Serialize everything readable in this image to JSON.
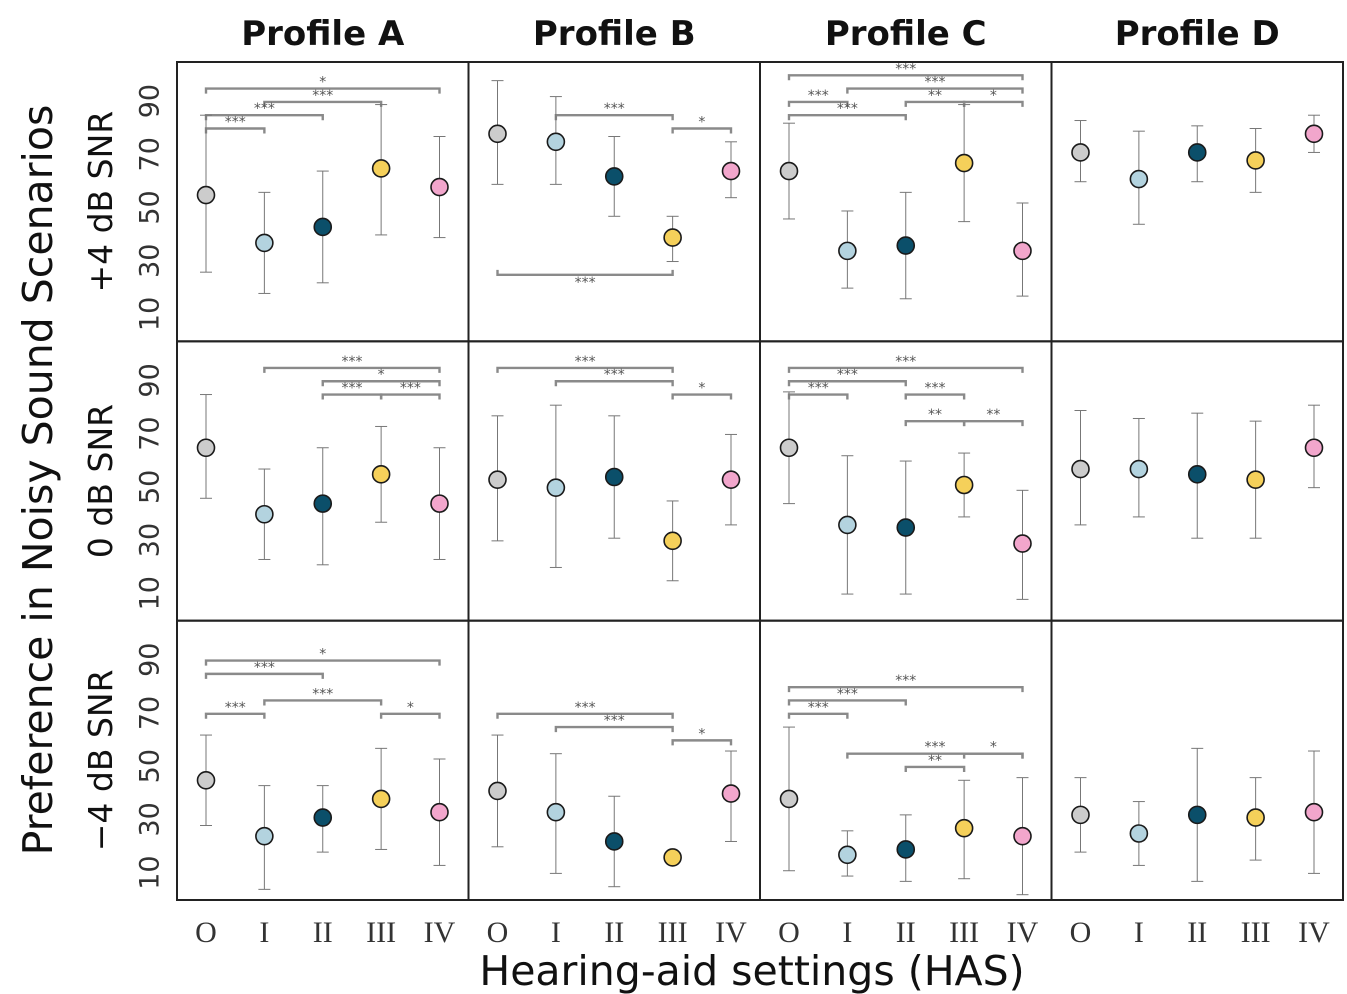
{
  "chart_data": {
    "type": "scatter",
    "ylabel": "Preference in Noisy Sound Scenarios",
    "xlabel": "Hearing-aid settings (HAS)",
    "profiles": [
      "Profile A",
      "Profile B",
      "Profile C",
      "Profile D"
    ],
    "conditions": [
      "+4 dB SNR",
      "0 dB SNR",
      "−4 dB SNR"
    ],
    "categories": [
      "O",
      "I",
      "II",
      "III",
      "IV"
    ],
    "yticks": [
      10,
      30,
      50,
      70,
      90
    ],
    "ylim": [
      0,
      105
    ],
    "colors": [
      "#cccccc",
      "#b3d3df",
      "#0b4f6a",
      "#f5d05a",
      "#f2a6cc"
    ],
    "panels": [
      [
        {
          "mean": [
            55,
            37,
            43,
            65,
            58
          ],
          "lo": [
            26,
            18,
            22,
            40,
            39
          ],
          "hi": [
            85,
            56,
            64,
            89,
            77
          ],
          "sig": [
            {
              "a": 0,
              "b": 4,
              "y": 95,
              "label": "*"
            },
            {
              "a": 1,
              "b": 3,
              "y": 90,
              "label": "***"
            },
            {
              "a": 0,
              "b": 2,
              "y": 85,
              "label": "***"
            },
            {
              "a": 0,
              "b": 1,
              "y": 80,
              "label": "***"
            }
          ]
        },
        {
          "mean": [
            65,
            40,
            44,
            55,
            44
          ],
          "lo": [
            46,
            23,
            21,
            37,
            23
          ],
          "hi": [
            85,
            57,
            65,
            73,
            65
          ],
          "sig": [
            {
              "a": 1,
              "b": 4,
              "y": 95,
              "label": "***"
            },
            {
              "a": 2,
              "b": 4,
              "y": 90,
              "label": "*"
            },
            {
              "a": 2,
              "b": 3,
              "y": 85,
              "label": "***"
            },
            {
              "a": 3,
              "b": 4,
              "y": 85,
              "label": "***"
            }
          ]
        },
        {
          "mean": [
            45,
            24,
            31,
            38,
            33
          ],
          "lo": [
            28,
            4,
            18,
            19,
            13
          ],
          "hi": [
            62,
            43,
            43,
            57,
            53
          ],
          "sig": [
            {
              "a": 0,
              "b": 4,
              "y": 90,
              "label": "*"
            },
            {
              "a": 0,
              "b": 2,
              "y": 85,
              "label": "***"
            },
            {
              "a": 1,
              "b": 3,
              "y": 75,
              "label": "***"
            },
            {
              "a": 0,
              "b": 1,
              "y": 70,
              "label": "***"
            },
            {
              "a": 3,
              "b": 4,
              "y": 70,
              "label": "*"
            }
          ]
        }
      ],
      [
        {
          "mean": [
            78,
            75,
            62,
            39,
            64
          ],
          "lo": [
            59,
            59,
            47,
            30,
            54
          ],
          "hi": [
            98,
            92,
            77,
            47,
            75
          ],
          "sig": [
            {
              "a": 1,
              "b": 3,
              "y": 85,
              "label": "***"
            },
            {
              "a": 3,
              "b": 4,
              "y": 80,
              "label": "*"
            },
            {
              "a": 0,
              "b": 3,
              "y": 25,
              "label": "***",
              "below": true
            }
          ]
        },
        {
          "mean": [
            53,
            50,
            54,
            30,
            53
          ],
          "lo": [
            30,
            20,
            31,
            15,
            36
          ],
          "hi": [
            77,
            81,
            77,
            45,
            70
          ],
          "sig": [
            {
              "a": 0,
              "b": 3,
              "y": 95,
              "label": "***"
            },
            {
              "a": 1,
              "b": 3,
              "y": 90,
              "label": "***"
            },
            {
              "a": 3,
              "b": 4,
              "y": 85,
              "label": "*"
            }
          ]
        },
        {
          "mean": [
            41,
            33,
            22,
            16,
            40
          ],
          "lo": [
            20,
            10,
            5,
            16,
            22
          ],
          "hi": [
            62,
            55,
            39,
            16,
            56
          ],
          "sig": [
            {
              "a": 0,
              "b": 3,
              "y": 70,
              "label": "***"
            },
            {
              "a": 1,
              "b": 3,
              "y": 65,
              "label": "***"
            },
            {
              "a": 3,
              "b": 4,
              "y": 60,
              "label": "*"
            }
          ]
        }
      ],
      [
        {
          "mean": [
            64,
            34,
            36,
            67,
            34
          ],
          "lo": [
            46,
            20,
            16,
            45,
            17
          ],
          "hi": [
            82,
            49,
            56,
            89,
            52
          ],
          "sig": [
            {
              "a": 0,
              "b": 4,
              "y": 100,
              "label": "***"
            },
            {
              "a": 1,
              "b": 4,
              "y": 95,
              "label": "***"
            },
            {
              "a": 0,
              "b": 1,
              "y": 90,
              "label": "***"
            },
            {
              "a": 2,
              "b": 3,
              "y": 90,
              "label": "**"
            },
            {
              "a": 3,
              "b": 4,
              "y": 90,
              "label": "*"
            },
            {
              "a": 0,
              "b": 2,
              "y": 85,
              "label": "***"
            }
          ]
        },
        {
          "mean": [
            65,
            36,
            35,
            51,
            29
          ],
          "lo": [
            44,
            10,
            10,
            39,
            8
          ],
          "hi": [
            86,
            62,
            60,
            63,
            49
          ],
          "sig": [
            {
              "a": 0,
              "b": 4,
              "y": 95,
              "label": "***"
            },
            {
              "a": 0,
              "b": 2,
              "y": 90,
              "label": "***"
            },
            {
              "a": 0,
              "b": 1,
              "y": 85,
              "label": "***"
            },
            {
              "a": 2,
              "b": 3,
              "y": 85,
              "label": "***"
            },
            {
              "a": 2,
              "b": 3,
              "y": 75,
              "label": "**"
            },
            {
              "a": 3,
              "b": 4,
              "y": 75,
              "label": "**"
            }
          ]
        },
        {
          "mean": [
            38,
            17,
            19,
            27,
            24
          ],
          "lo": [
            11,
            9,
            7,
            8,
            2
          ],
          "hi": [
            65,
            26,
            32,
            45,
            46
          ],
          "sig": [
            {
              "a": 0,
              "b": 4,
              "y": 80,
              "label": "***"
            },
            {
              "a": 0,
              "b": 2,
              "y": 75,
              "label": "***"
            },
            {
              "a": 0,
              "b": 1,
              "y": 70,
              "label": "***"
            },
            {
              "a": 1,
              "b": 4,
              "y": 55,
              "label": "***"
            },
            {
              "a": 2,
              "b": 3,
              "y": 50,
              "label": "**"
            },
            {
              "a": 3,
              "b": 4,
              "y": 55,
              "label": "*"
            }
          ]
        }
      ],
      [
        {
          "mean": [
            71,
            61,
            71,
            68,
            78
          ],
          "lo": [
            60,
            44,
            60,
            56,
            71
          ],
          "hi": [
            83,
            79,
            81,
            80,
            85
          ],
          "sig": []
        },
        {
          "mean": [
            57,
            57,
            55,
            53,
            65
          ],
          "lo": [
            36,
            39,
            31,
            31,
            50
          ],
          "hi": [
            79,
            76,
            78,
            75,
            81
          ],
          "sig": []
        },
        {
          "mean": [
            32,
            25,
            32,
            31,
            33
          ],
          "lo": [
            18,
            13,
            7,
            15,
            10
          ],
          "hi": [
            46,
            37,
            57,
            46,
            56
          ],
          "sig": []
        }
      ]
    ]
  }
}
